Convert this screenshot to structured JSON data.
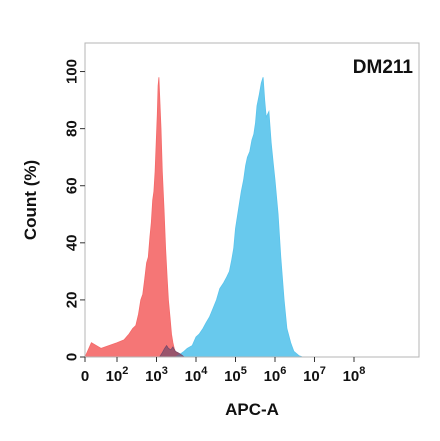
{
  "chart_data": {
    "type": "area",
    "annotation": "DM211",
    "xlabel": "APC-A",
    "ylabel": "Count  (%)",
    "xscale": "biexponential",
    "xlim": [
      0,
      100000000
    ],
    "ylim": [
      0,
      110
    ],
    "grid": false,
    "legend": "none",
    "x_ticks": [
      {
        "value": 0,
        "base": "0",
        "exp": ""
      },
      {
        "value": 100,
        "base": "10",
        "exp": "2"
      },
      {
        "value": 1000,
        "base": "10",
        "exp": "3"
      },
      {
        "value": 10000,
        "base": "10",
        "exp": "4"
      },
      {
        "value": 100000,
        "base": "10",
        "exp": "5"
      },
      {
        "value": 1000000,
        "base": "10",
        "exp": "6"
      },
      {
        "value": 10000000,
        "base": "10",
        "exp": "7"
      },
      {
        "value": 100000000,
        "base": "10",
        "exp": "8"
      }
    ],
    "y_ticks": [
      0,
      20,
      40,
      60,
      80,
      100
    ],
    "series": [
      {
        "color": "#f46a6a",
        "opacity": 0.92,
        "x": [
          0,
          20,
          50,
          100,
          150,
          200,
          250,
          300,
          350,
          400,
          450,
          500,
          560,
          620,
          680,
          740,
          800,
          860,
          920,
          980,
          1050,
          1100,
          1150,
          1200,
          1300,
          1400,
          1550,
          1700,
          1850,
          2000,
          2200,
          2400,
          2600,
          2800,
          3000,
          3300,
          3600,
          4000,
          4400,
          5000,
          5500
        ],
        "y": [
          0,
          5,
          3,
          5,
          6,
          8,
          10,
          11,
          15,
          20,
          22,
          27,
          33,
          35,
          42,
          47,
          55,
          58,
          65,
          75,
          85,
          95,
          98,
          92,
          80,
          65,
          52,
          38,
          28,
          20,
          14,
          8,
          5,
          3,
          2,
          1.5,
          1,
          0.5,
          0.3,
          0.1,
          0
        ]
      },
      {
        "color": "#5bc4ec",
        "opacity": 0.92,
        "x": [
          3000,
          4000,
          5000,
          6000,
          8000,
          10000,
          12000,
          15000,
          18000,
          22000,
          27000,
          33000,
          40000,
          50000,
          60000,
          70000,
          80000,
          90000,
          100000,
          120000,
          140000,
          160000,
          180000,
          200000,
          230000,
          260000,
          290000,
          320000,
          350000,
          400000,
          450000,
          500000,
          550000,
          600000,
          700000,
          800000,
          900000,
          1000000,
          1200000,
          1400000,
          1700000,
          2000000,
          2500000,
          3000000,
          4000000,
          5000000
        ],
        "y": [
          0,
          1,
          2,
          3,
          4,
          7,
          8,
          10,
          12,
          14,
          17,
          20,
          24,
          26,
          28,
          30,
          34,
          38,
          45,
          52,
          58,
          62,
          67,
          70,
          72,
          76,
          78,
          82,
          88,
          92,
          96,
          98,
          90,
          84,
          86,
          75,
          68,
          62,
          50,
          35,
          20,
          10,
          5,
          2,
          0.5,
          0
        ]
      },
      {
        "color": "#7a4a6a",
        "opacity": 0.75,
        "x": [
          1200,
          1400,
          1600,
          1800,
          2000,
          2300,
          2600,
          3000,
          3500,
          4000,
          4500,
          5000
        ],
        "y": [
          0,
          1.5,
          3,
          4,
          3,
          2.5,
          3.5,
          2,
          1.5,
          1,
          0.5,
          0
        ]
      }
    ]
  }
}
